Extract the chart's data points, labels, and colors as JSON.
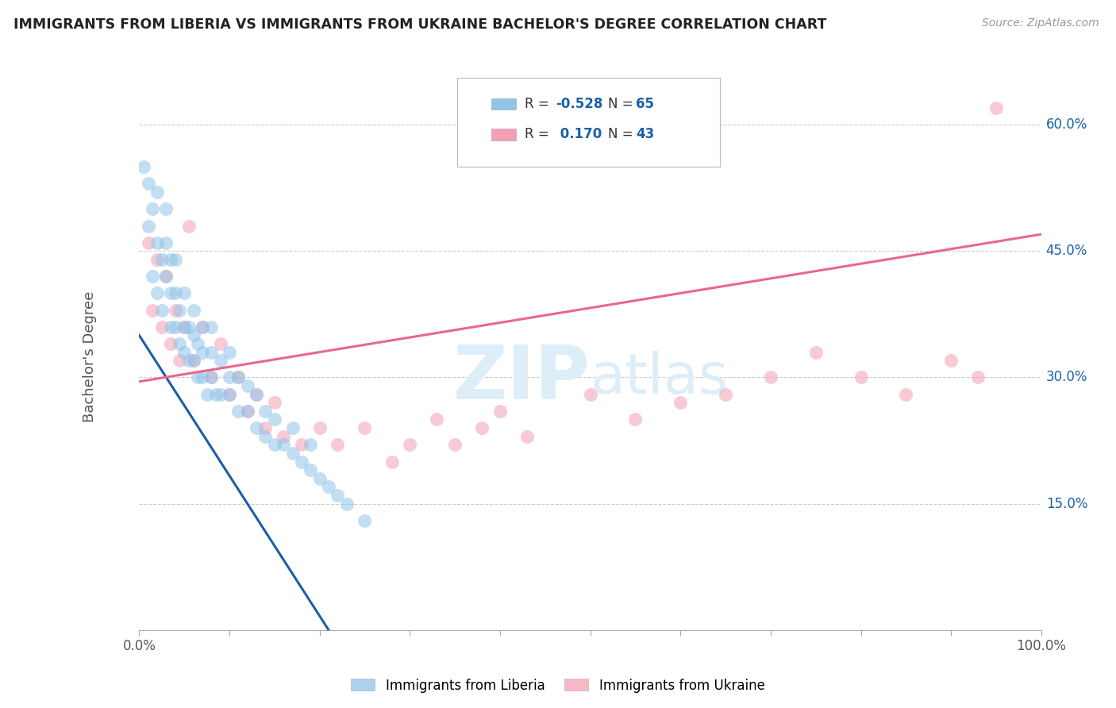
{
  "title": "IMMIGRANTS FROM LIBERIA VS IMMIGRANTS FROM UKRAINE BACHELOR'S DEGREE CORRELATION CHART",
  "source": "Source: ZipAtlas.com",
  "ylabel": "Bachelor's Degree",
  "xlim": [
    0.0,
    1.0
  ],
  "ylim": [
    0.0,
    0.65
  ],
  "ytick_labels": [
    "15.0%",
    "30.0%",
    "45.0%",
    "60.0%"
  ],
  "ytick_values": [
    0.15,
    0.3,
    0.45,
    0.6
  ],
  "xtick_positions": [
    0.0,
    0.1,
    0.2,
    0.3,
    0.4,
    0.5,
    0.6,
    0.7,
    0.8,
    0.9,
    1.0
  ],
  "xtick_labels_sparse": {
    "0.0": "0.0%",
    "1.0": "100.0%"
  },
  "color_liberia": "#90c4e8",
  "color_ukraine": "#f4a0b5",
  "line_color_liberia": "#1a5fa8",
  "line_color_ukraine": "#e8688a",
  "background_color": "#ffffff",
  "grid_color": "#cccccc",
  "title_color": "#222222",
  "watermark_color": "#ddeef8",
  "liberia_x": [
    0.005,
    0.01,
    0.01,
    0.015,
    0.015,
    0.02,
    0.02,
    0.02,
    0.025,
    0.025,
    0.03,
    0.03,
    0.03,
    0.035,
    0.035,
    0.035,
    0.04,
    0.04,
    0.04,
    0.045,
    0.045,
    0.05,
    0.05,
    0.05,
    0.055,
    0.055,
    0.06,
    0.06,
    0.06,
    0.065,
    0.065,
    0.07,
    0.07,
    0.07,
    0.075,
    0.08,
    0.08,
    0.08,
    0.085,
    0.09,
    0.09,
    0.1,
    0.1,
    0.1,
    0.11,
    0.11,
    0.12,
    0.12,
    0.13,
    0.13,
    0.14,
    0.14,
    0.15,
    0.15,
    0.16,
    0.17,
    0.17,
    0.18,
    0.19,
    0.19,
    0.2,
    0.21,
    0.22,
    0.23,
    0.25
  ],
  "liberia_y": [
    0.55,
    0.48,
    0.53,
    0.42,
    0.5,
    0.4,
    0.46,
    0.52,
    0.38,
    0.44,
    0.42,
    0.46,
    0.5,
    0.36,
    0.4,
    0.44,
    0.36,
    0.4,
    0.44,
    0.34,
    0.38,
    0.33,
    0.36,
    0.4,
    0.32,
    0.36,
    0.32,
    0.35,
    0.38,
    0.3,
    0.34,
    0.3,
    0.33,
    0.36,
    0.28,
    0.3,
    0.33,
    0.36,
    0.28,
    0.28,
    0.32,
    0.28,
    0.3,
    0.33,
    0.26,
    0.3,
    0.26,
    0.29,
    0.24,
    0.28,
    0.23,
    0.26,
    0.22,
    0.25,
    0.22,
    0.21,
    0.24,
    0.2,
    0.19,
    0.22,
    0.18,
    0.17,
    0.16,
    0.15,
    0.13
  ],
  "ukraine_x": [
    0.01,
    0.015,
    0.02,
    0.025,
    0.03,
    0.035,
    0.04,
    0.045,
    0.05,
    0.055,
    0.06,
    0.07,
    0.08,
    0.09,
    0.1,
    0.11,
    0.12,
    0.13,
    0.14,
    0.15,
    0.16,
    0.18,
    0.2,
    0.22,
    0.25,
    0.28,
    0.3,
    0.33,
    0.35,
    0.38,
    0.4,
    0.43,
    0.5,
    0.55,
    0.6,
    0.65,
    0.7,
    0.75,
    0.8,
    0.85,
    0.9,
    0.93,
    0.95
  ],
  "ukraine_y": [
    0.46,
    0.38,
    0.44,
    0.36,
    0.42,
    0.34,
    0.38,
    0.32,
    0.36,
    0.48,
    0.32,
    0.36,
    0.3,
    0.34,
    0.28,
    0.3,
    0.26,
    0.28,
    0.24,
    0.27,
    0.23,
    0.22,
    0.24,
    0.22,
    0.24,
    0.2,
    0.22,
    0.25,
    0.22,
    0.24,
    0.26,
    0.23,
    0.28,
    0.25,
    0.27,
    0.28,
    0.3,
    0.33,
    0.3,
    0.28,
    0.32,
    0.3,
    0.62
  ],
  "liberia_line_x": [
    0.0,
    0.21
  ],
  "liberia_line_y": [
    0.35,
    0.0
  ],
  "ukraine_line_x": [
    0.0,
    1.0
  ],
  "ukraine_line_y": [
    0.295,
    0.47
  ]
}
